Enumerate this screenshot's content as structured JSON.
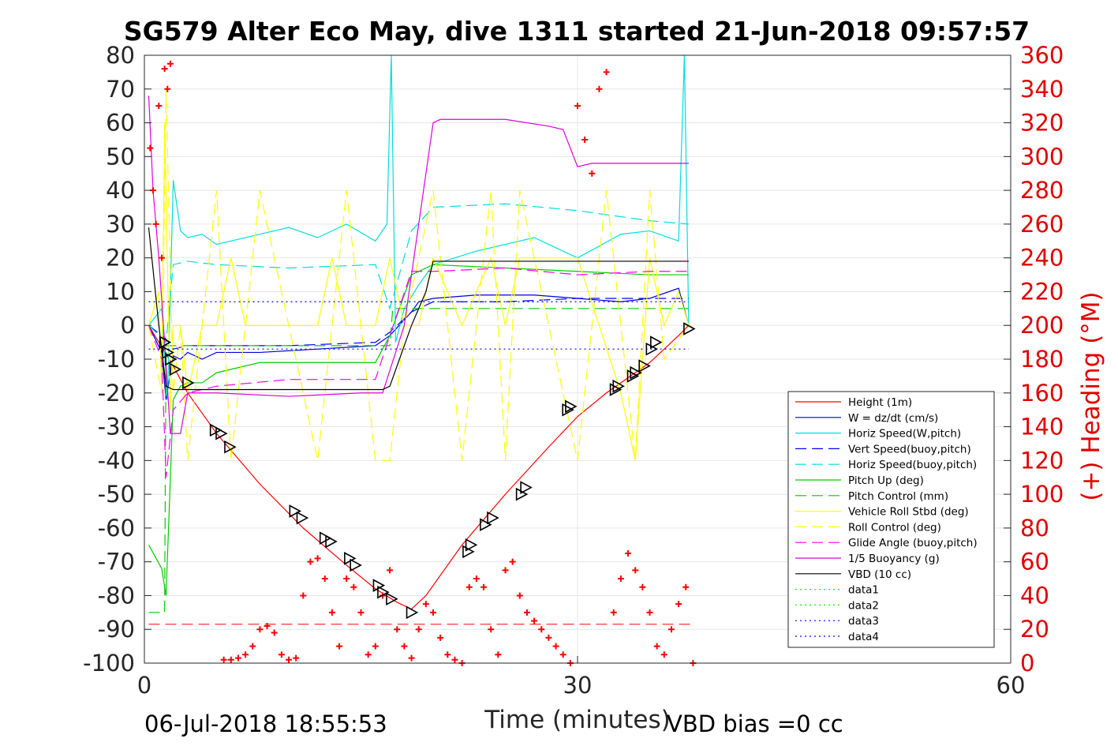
{
  "chart_data": {
    "type": "line",
    "title": "SG579 Alter Eco May, dive 1311 started 21-Jun-2018 09:57:57",
    "xlabel": "Time (minutes)",
    "ylabel_right": "(+) Heading (°M)",
    "xlim": [
      0,
      60
    ],
    "ylim": [
      -100,
      80
    ],
    "ylim_right": [
      0,
      360
    ],
    "x_ticks": [
      "0",
      "30",
      "60"
    ],
    "y_ticks": [
      "80",
      "70",
      "60",
      "50",
      "40",
      "30",
      "20",
      "10",
      "0",
      "-10",
      "-20",
      "-30",
      "-40",
      "-50",
      "-60",
      "-70",
      "-80",
      "-90",
      "-100"
    ],
    "y_right_ticks": [
      "360",
      "340",
      "320",
      "300",
      "280",
      "260",
      "240",
      "220",
      "200",
      "180",
      "160",
      "140",
      "120",
      "100",
      "80",
      "60",
      "40",
      "20",
      "0"
    ],
    "grid": true,
    "legend_position": "lower-right",
    "series": [
      {
        "name": "Height (1m)",
        "color": "#ff0000",
        "style": "solid",
        "x": [
          0.3,
          1,
          2,
          3,
          5,
          8,
          11,
          14,
          16,
          17.5,
          18.5,
          19.5,
          22,
          25,
          28,
          30,
          32,
          35,
          37,
          37.7
        ],
        "y": [
          0,
          -5,
          -12,
          -20,
          -32,
          -47,
          -60,
          -71,
          -78,
          -82,
          -84,
          -80,
          -65,
          -50,
          -36,
          -27,
          -20,
          -11,
          -3,
          0
        ]
      },
      {
        "name": "W = dz/dt (cm/s)",
        "color": "#0000dd",
        "style": "solid",
        "x": [
          0.3,
          1.2,
          1.5,
          2,
          2.5,
          3,
          4,
          5,
          8,
          12,
          16,
          17,
          18.5,
          19,
          20,
          23,
          27,
          30,
          33,
          35,
          37,
          37.7
        ],
        "y": [
          0,
          -8,
          -22,
          -9,
          -10,
          -8,
          -10,
          -8,
          -8,
          -7,
          -6,
          -3,
          4,
          7,
          8,
          9,
          9,
          8,
          7,
          8,
          11,
          0
        ]
      },
      {
        "name": "Horiz Speed(W,pitch)",
        "color": "#00dddd",
        "style": "solid",
        "x": [
          0.3,
          1.2,
          1.6,
          2,
          2.5,
          3,
          4,
          5,
          8,
          10,
          12,
          14,
          16,
          16.8,
          17.1,
          17.4,
          18,
          19,
          20,
          23,
          27,
          30,
          33,
          35,
          37,
          37.4,
          37.7
        ],
        "y": [
          0,
          5,
          -22,
          43,
          28,
          26,
          27,
          24,
          27,
          29,
          26,
          30,
          25,
          30,
          80,
          -5,
          5,
          12,
          18,
          22,
          26,
          20,
          27,
          28,
          25,
          80,
          0
        ]
      },
      {
        "name": "Vert Speed(buoy,pitch)",
        "color": "#0000ff",
        "style": "dashed",
        "x": [
          0.3,
          1.5,
          2,
          3,
          5,
          10,
          16,
          17,
          18.5,
          20,
          25,
          30,
          35,
          37.7
        ],
        "y": [
          0,
          -4,
          -7,
          -6,
          -6,
          -6,
          -5,
          -2,
          4,
          7,
          7,
          8,
          8,
          8
        ]
      },
      {
        "name": "Horiz Speed(buoy,pitch)",
        "color": "#00dddd",
        "style": "dashed",
        "x": [
          0.3,
          1.5,
          2,
          3,
          5,
          10,
          16,
          17,
          18.5,
          20,
          25,
          30,
          35,
          37.7
        ],
        "y": [
          0,
          -5,
          18,
          19,
          18,
          17,
          18,
          5,
          28,
          35,
          36,
          34,
          31,
          30
        ]
      },
      {
        "name": "Pitch Up (deg)",
        "color": "#00cc00",
        "style": "solid",
        "x": [
          0.3,
          1.2,
          1.5,
          2,
          2.5,
          3,
          4,
          5,
          8,
          12,
          16,
          17,
          18.5,
          20,
          25,
          30,
          35,
          37.7
        ],
        "y": [
          -65,
          -72,
          -80,
          -22,
          -18,
          -17,
          -17,
          -14,
          -11,
          -11,
          -11,
          -3,
          15,
          18,
          17,
          16,
          15,
          15
        ]
      },
      {
        "name": "Pitch Control (mm)",
        "color": "#00cc00",
        "style": "dashed",
        "x": [
          0.3,
          1.4,
          1.5,
          2,
          5,
          10,
          17,
          17.2,
          20,
          30,
          37.7
        ],
        "y": [
          -85,
          -85,
          -6,
          -6,
          -6,
          -6,
          -6,
          5,
          5,
          5,
          5
        ]
      },
      {
        "name": "Vehicle Roll Stbd (deg)",
        "color": "#ffff00",
        "style": "solid",
        "x": [
          0.3,
          1,
          1.2,
          1.4,
          1.8,
          2,
          2.5,
          3,
          4,
          5,
          6,
          7,
          10,
          12,
          13,
          14,
          16,
          17,
          18,
          19,
          20,
          22,
          24,
          25,
          26,
          30,
          33,
          34,
          35,
          36,
          37,
          37.7
        ],
        "y": [
          0,
          10,
          -20,
          60,
          -25,
          0,
          0,
          -20,
          0,
          0,
          20,
          0,
          0,
          0,
          20,
          0,
          0,
          20,
          0,
          0,
          20,
          0,
          20,
          0,
          20,
          20,
          -20,
          -40,
          20,
          0,
          10,
          0
        ]
      },
      {
        "name": "Roll Control (deg)",
        "color": "#ffff00",
        "style": "dashed",
        "x": [
          0.3,
          1.2,
          1.5,
          2,
          2.5,
          3,
          5,
          6,
          8,
          10,
          12,
          14,
          16,
          17,
          18,
          20,
          22,
          24,
          25,
          26,
          30,
          32,
          34,
          35,
          36,
          37.7
        ],
        "y": [
          0,
          -20,
          70,
          -20,
          0,
          -40,
          40,
          -40,
          40,
          0,
          -40,
          40,
          -40,
          -40,
          0,
          40,
          -40,
          40,
          -40,
          40,
          -40,
          40,
          -40,
          40,
          -10,
          0
        ]
      },
      {
        "name": "Glide Angle (buoy,pitch)",
        "color": "#ff00ff",
        "style": "dashed",
        "x": [
          0.3,
          1.2,
          1.5,
          2,
          3,
          5,
          10,
          16,
          17,
          18.5,
          20,
          25,
          30,
          35,
          37.7
        ],
        "y": [
          0,
          -10,
          -45,
          -25,
          -20,
          -18,
          -16,
          -16,
          -3,
          16,
          16,
          17,
          15,
          16,
          16
        ]
      },
      {
        "name": "1/5 Buoyancy (g)",
        "color": "#dd00dd",
        "style": "solid",
        "x": [
          0.3,
          0.6,
          1,
          1.4,
          1.8,
          2,
          2.5,
          3,
          5,
          10,
          15,
          16.5,
          18,
          20,
          20.5,
          22,
          25,
          28,
          29,
          30,
          31,
          35,
          37.5,
          37.7
        ],
        "y": [
          68,
          40,
          20,
          -5,
          -32,
          -32,
          -32,
          -20,
          -20,
          -21,
          -20,
          -20,
          0,
          60,
          61,
          61,
          61,
          59,
          58,
          47,
          48,
          48,
          48,
          48
        ]
      },
      {
        "name": "VBD (10 cc)",
        "color": "#000000",
        "style": "solid",
        "x": [
          0.3,
          1,
          1.5,
          2,
          16.5,
          17,
          18.5,
          19.5,
          20,
          25,
          30,
          35,
          37.7
        ],
        "y": [
          29,
          0,
          -18,
          -19,
          -19,
          -18,
          0,
          10,
          19,
          19,
          19,
          19,
          19
        ]
      },
      {
        "name": "data1",
        "color": "#00ff00",
        "style": "dotted",
        "x": [],
        "y": []
      },
      {
        "name": "data2",
        "color": "#00ff00",
        "style": "dotted",
        "x": [],
        "y": []
      },
      {
        "name": "data3",
        "color": "#0000ff",
        "style": "dotted",
        "x": [
          0.3,
          37.7
        ],
        "y": [
          7,
          7
        ]
      },
      {
        "name": "data4",
        "color": "#0000ff",
        "style": "dotted",
        "x": [
          0.3,
          37.7
        ],
        "y": [
          -7,
          -7
        ]
      }
    ],
    "reference_lines": [
      {
        "color": "#ff0000",
        "style": "dashed",
        "x": [
          0.3,
          38
        ],
        "y": [
          -88.5,
          -88.5
        ]
      }
    ],
    "heading_markers": {
      "axis": "right",
      "color": "#ff0000",
      "marker": "+",
      "x": [
        0.4,
        0.6,
        0.8,
        1,
        1.2,
        1.4,
        1.6,
        1.8,
        5.5,
        6,
        6.5,
        7,
        7.5,
        8,
        8.5,
        9,
        9.5,
        10,
        10.5,
        11,
        11.5,
        12,
        12.5,
        13,
        13.5,
        14,
        14.5,
        15,
        15.5,
        16,
        16.5,
        17,
        17.5,
        18,
        18.5,
        19,
        19.5,
        20,
        20.5,
        21,
        21.5,
        22,
        22.5,
        23,
        23.5,
        24,
        24.5,
        25,
        25.5,
        26,
        26.5,
        27,
        27.5,
        28,
        28.5,
        29,
        29.5,
        30,
        30.5,
        31,
        31.5,
        32,
        32.5,
        33,
        33.5,
        34,
        34.5,
        35,
        35.5,
        36,
        36.5,
        37,
        37.5,
        38
      ],
      "y": [
        305,
        280,
        260,
        330,
        240,
        352,
        340,
        355,
        2,
        2,
        3,
        5,
        10,
        20,
        22,
        18,
        5,
        2,
        3,
        40,
        60,
        62,
        50,
        30,
        10,
        50,
        45,
        30,
        5,
        10,
        40,
        55,
        20,
        10,
        3,
        20,
        35,
        30,
        15,
        5,
        2,
        0,
        45,
        50,
        45,
        20,
        5,
        55,
        60,
        40,
        30,
        25,
        20,
        15,
        10,
        5,
        0,
        330,
        310,
        290,
        340,
        350,
        30,
        50,
        65,
        55,
        45,
        30,
        10,
        5,
        20,
        35,
        45,
        0
      ]
    },
    "dive_markers": {
      "color": "#000000",
      "marker": "triangle-right",
      "x": [
        1.4,
        1.6,
        1.8,
        2.1,
        3,
        4.9,
        5.3,
        5.9,
        10.4,
        10.9,
        12.5,
        12.9,
        14.2,
        14.6,
        16.2,
        16.5,
        17.1,
        18.5,
        22.4,
        22.6,
        23.6,
        24.1,
        26.1,
        26.4,
        29.3,
        29.5,
        32.6,
        32.8,
        33.8,
        34,
        34.6,
        35.1,
        35.4,
        37.7
      ],
      "y": [
        -5,
        -8,
        -10,
        -13,
        -17,
        -31,
        -32,
        -36,
        -55,
        -57,
        -63,
        -64,
        -69,
        -71,
        -77,
        -79,
        -81,
        -85,
        -67,
        -65,
        -59,
        -57,
        -50,
        -48,
        -25,
        -24,
        -19,
        -18,
        -15,
        -14,
        -12,
        -7,
        -5,
        -1
      ]
    },
    "legend": [
      "Height (1m)",
      "W = dz/dt (cm/s)",
      "Horiz Speed(W,pitch)",
      "Vert Speed(buoy,pitch)",
      "Horiz Speed(buoy,pitch)",
      "Pitch Up (deg)",
      "Pitch Control (mm)",
      "Vehicle Roll Stbd (deg)",
      "Roll Control (deg)",
      "Glide Angle (buoy,pitch)",
      "1/5 Buoyancy (g)",
      "VBD (10 cc)",
      "data1",
      "data2",
      "data3",
      "data4"
    ]
  },
  "footer": {
    "date": "06-Jul-2018 18:55:53",
    "vbd_bias": "VBD bias =0 cc"
  }
}
